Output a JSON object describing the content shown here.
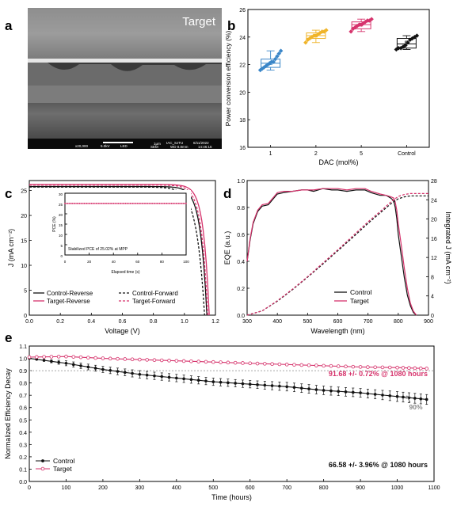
{
  "panel_labels": [
    "a",
    "b",
    "c",
    "d",
    "e"
  ],
  "colors": {
    "dac1": "#3a86c8",
    "dac2": "#f0b429",
    "dac5": "#d6336c",
    "control": "#111111",
    "target": "#d6336c",
    "ref_line": "#8a8a8a"
  },
  "sem": {
    "overlay_label": "Target",
    "info_bar": [
      "x20,000",
      "5.0kV",
      "LED",
      "1μm",
      "SEM",
      "IAC_SJTU",
      "WD 8.8mm",
      "6/11/2022",
      "14:46:16"
    ]
  },
  "chart_data": [
    {
      "panel": "b",
      "type": "box",
      "ylabel": "Power conversion efficiency (%)",
      "xlabel": "DAC (mol%)",
      "categories": [
        "1",
        "2",
        "5",
        "Control"
      ],
      "ylim": [
        16,
        26
      ],
      "yticks": [
        16,
        18,
        20,
        22,
        24,
        26
      ],
      "boxes": [
        {
          "q1": 21.8,
          "median": 22.1,
          "q3": 22.4,
          "mean": 22.1,
          "whisker_low": 21.6,
          "whisker_high": 23.0
        },
        {
          "q1": 23.9,
          "median": 24.1,
          "q3": 24.3,
          "mean": 24.1,
          "whisker_low": 23.6,
          "whisker_high": 24.5
        },
        {
          "q1": 24.6,
          "median": 24.9,
          "q3": 25.1,
          "mean": 24.9,
          "whisker_low": 24.4,
          "whisker_high": 25.3
        },
        {
          "q1": 23.2,
          "median": 23.5,
          "q3": 23.9,
          "mean": 23.6,
          "whisker_low": 23.1,
          "whisker_high": 24.1
        }
      ],
      "points": [
        [
          21.6,
          21.7,
          21.8,
          21.9,
          22.0,
          22.1,
          22.2,
          22.2,
          22.4,
          22.6,
          22.8,
          23.0
        ],
        [
          23.6,
          23.8,
          23.9,
          24.0,
          24.1,
          24.1,
          24.2,
          24.3,
          24.4,
          24.4,
          24.5
        ],
        [
          24.4,
          24.6,
          24.7,
          24.8,
          24.9,
          24.9,
          25.0,
          25.1,
          25.2,
          25.2,
          25.3
        ],
        [
          23.1,
          23.2,
          23.2,
          23.3,
          23.4,
          23.6,
          23.8,
          23.9,
          24.0,
          24.1
        ]
      ]
    },
    {
      "panel": "c",
      "type": "line",
      "xlabel": "Voltage (V)",
      "ylabel": "J (mA cm⁻²)",
      "xlim": [
        0,
        1.2
      ],
      "ylim": [
        0,
        27
      ],
      "xticks": [
        0.0,
        0.2,
        0.4,
        0.6,
        0.8,
        1.0,
        1.2
      ],
      "yticks": [
        0,
        5,
        10,
        15,
        20,
        25
      ],
      "series": [
        {
          "name": "Control-Reverse",
          "jsc": 25.8,
          "voc": 1.145,
          "n": 1.6,
          "dash": false,
          "color": "#111111"
        },
        {
          "name": "Control-Forward",
          "jsc": 25.7,
          "voc": 1.13,
          "n": 1.95,
          "dash": true,
          "color": "#111111"
        },
        {
          "name": "Target-Reverse",
          "jsc": 26.2,
          "voc": 1.16,
          "n": 1.45,
          "dash": false,
          "color": "#d6336c"
        },
        {
          "name": "Target-Forward",
          "jsc": 26.1,
          "voc": 1.15,
          "n": 1.55,
          "dash": true,
          "color": "#d6336c"
        }
      ],
      "legend_placement": "bottom-left",
      "inset": {
        "xlabel": "Elapsed time (s)",
        "ylabel": "PCE (%)",
        "xlim": [
          0,
          100
        ],
        "ylim": [
          0,
          30
        ],
        "xticks": [
          0,
          20,
          40,
          60,
          80,
          100
        ],
        "yticks": [
          0,
          5,
          10,
          15,
          20,
          25,
          30
        ],
        "value": 25.02,
        "annotation": "Stabilized PCE of 25.02% at MPP"
      }
    },
    {
      "panel": "d",
      "type": "line",
      "xlabel": "Wavelength (nm)",
      "ylabel": "EQE (a.u.)",
      "y2label": "Integrated J (mA cm⁻²)",
      "xlim": [
        300,
        900
      ],
      "ylim": [
        0,
        1.0
      ],
      "y2lim": [
        0,
        28
      ],
      "xticks": [
        300,
        400,
        500,
        600,
        700,
        800,
        900
      ],
      "yticks": [
        0.0,
        0.2,
        0.4,
        0.6,
        0.8,
        1.0
      ],
      "y2ticks": [
        0,
        4,
        8,
        12,
        16,
        20,
        24,
        28
      ],
      "legend_placement": "bottom-right",
      "series": [
        {
          "name": "Control",
          "color": "#111111",
          "x": [
            300,
            310,
            320,
            335,
            350,
            370,
            385,
            400,
            420,
            450,
            480,
            500,
            520,
            550,
            580,
            600,
            630,
            660,
            690,
            710,
            740,
            760,
            775,
            785,
            790,
            795,
            800,
            810,
            820,
            830,
            840,
            850,
            860
          ],
          "y": [
            0.4,
            0.56,
            0.68,
            0.77,
            0.81,
            0.82,
            0.86,
            0.9,
            0.91,
            0.92,
            0.93,
            0.93,
            0.92,
            0.94,
            0.93,
            0.93,
            0.92,
            0.93,
            0.93,
            0.91,
            0.89,
            0.89,
            0.87,
            0.85,
            0.8,
            0.72,
            0.6,
            0.44,
            0.28,
            0.15,
            0.07,
            0.02,
            0.0
          ]
        },
        {
          "name": "Target",
          "color": "#d6336c",
          "x": [
            300,
            310,
            320,
            335,
            350,
            370,
            385,
            400,
            420,
            450,
            480,
            500,
            520,
            550,
            580,
            600,
            630,
            660,
            690,
            710,
            740,
            760,
            775,
            785,
            790,
            795,
            800,
            810,
            820,
            830,
            840,
            850,
            860
          ],
          "y": [
            0.4,
            0.57,
            0.69,
            0.78,
            0.82,
            0.83,
            0.87,
            0.91,
            0.92,
            0.92,
            0.93,
            0.93,
            0.93,
            0.94,
            0.94,
            0.94,
            0.93,
            0.94,
            0.94,
            0.92,
            0.9,
            0.89,
            0.88,
            0.87,
            0.84,
            0.78,
            0.68,
            0.52,
            0.35,
            0.2,
            0.09,
            0.03,
            0.0
          ]
        },
        {
          "name": "Control-integrated",
          "axis": "y2",
          "dash": true,
          "color": "#111111",
          "x": [
            300,
            350,
            400,
            450,
            500,
            550,
            600,
            650,
            700,
            750,
            780,
            800,
            820,
            840,
            860,
            900
          ],
          "y": [
            0,
            0.9,
            2.9,
            5.3,
            7.9,
            10.6,
            13.4,
            16.2,
            19.1,
            21.8,
            23.4,
            24.2,
            24.6,
            24.8,
            24.8,
            24.8
          ]
        },
        {
          "name": "Target-integrated",
          "axis": "y2",
          "dash": true,
          "color": "#d6336c",
          "x": [
            300,
            350,
            400,
            450,
            500,
            550,
            600,
            650,
            700,
            750,
            780,
            800,
            820,
            840,
            860,
            900
          ],
          "y": [
            0,
            0.9,
            3.0,
            5.4,
            8.0,
            10.8,
            13.6,
            16.5,
            19.4,
            22.1,
            23.8,
            24.7,
            25.1,
            25.3,
            25.3,
            25.3
          ]
        }
      ]
    },
    {
      "panel": "e",
      "type": "line",
      "xlabel": "Time (hours)",
      "ylabel": "Normalized Efficiency Decay",
      "xlim": [
        0,
        1100
      ],
      "ylim": [
        0,
        1.1
      ],
      "xticks": [
        0,
        100,
        200,
        300,
        400,
        500,
        600,
        700,
        800,
        900,
        1000,
        1100
      ],
      "yticks": [
        0.0,
        0.1,
        0.2,
        0.3,
        0.4,
        0.5,
        0.6,
        0.7,
        0.8,
        0.9,
        1.0,
        1.1
      ],
      "reference_line": 0.9,
      "legend_placement": "bottom-left",
      "series": [
        {
          "name": "Control",
          "color": "#111111",
          "x": [
            0,
            100,
            200,
            300,
            400,
            500,
            600,
            700,
            800,
            900,
            1000,
            1080
          ],
          "y": [
            1.0,
            0.96,
            0.91,
            0.87,
            0.84,
            0.81,
            0.79,
            0.77,
            0.74,
            0.72,
            0.69,
            0.666
          ],
          "err": [
            0.0,
            0.02,
            0.025,
            0.03,
            0.03,
            0.03,
            0.03,
            0.035,
            0.035,
            0.035,
            0.04,
            0.04
          ]
        },
        {
          "name": "Target",
          "color": "#d6336c",
          "x": [
            0,
            100,
            200,
            300,
            400,
            500,
            600,
            700,
            800,
            900,
            1000,
            1080
          ],
          "y": [
            1.01,
            1.015,
            1.0,
            0.99,
            0.98,
            0.97,
            0.96,
            0.95,
            0.94,
            0.93,
            0.925,
            0.917
          ],
          "err": [
            0.0,
            0.005,
            0.005,
            0.005,
            0.006,
            0.006,
            0.006,
            0.007,
            0.007,
            0.007,
            0.007,
            0.007
          ]
        }
      ],
      "annotations": [
        {
          "text": "91.68 +/- 0.72% @ 1080 hours",
          "color": "#d6336c"
        },
        {
          "text": "90%",
          "color": "#8a8a8a"
        },
        {
          "text": "66.58 +/- 3.96% @ 1080 hours",
          "color": "#111111"
        }
      ]
    }
  ]
}
